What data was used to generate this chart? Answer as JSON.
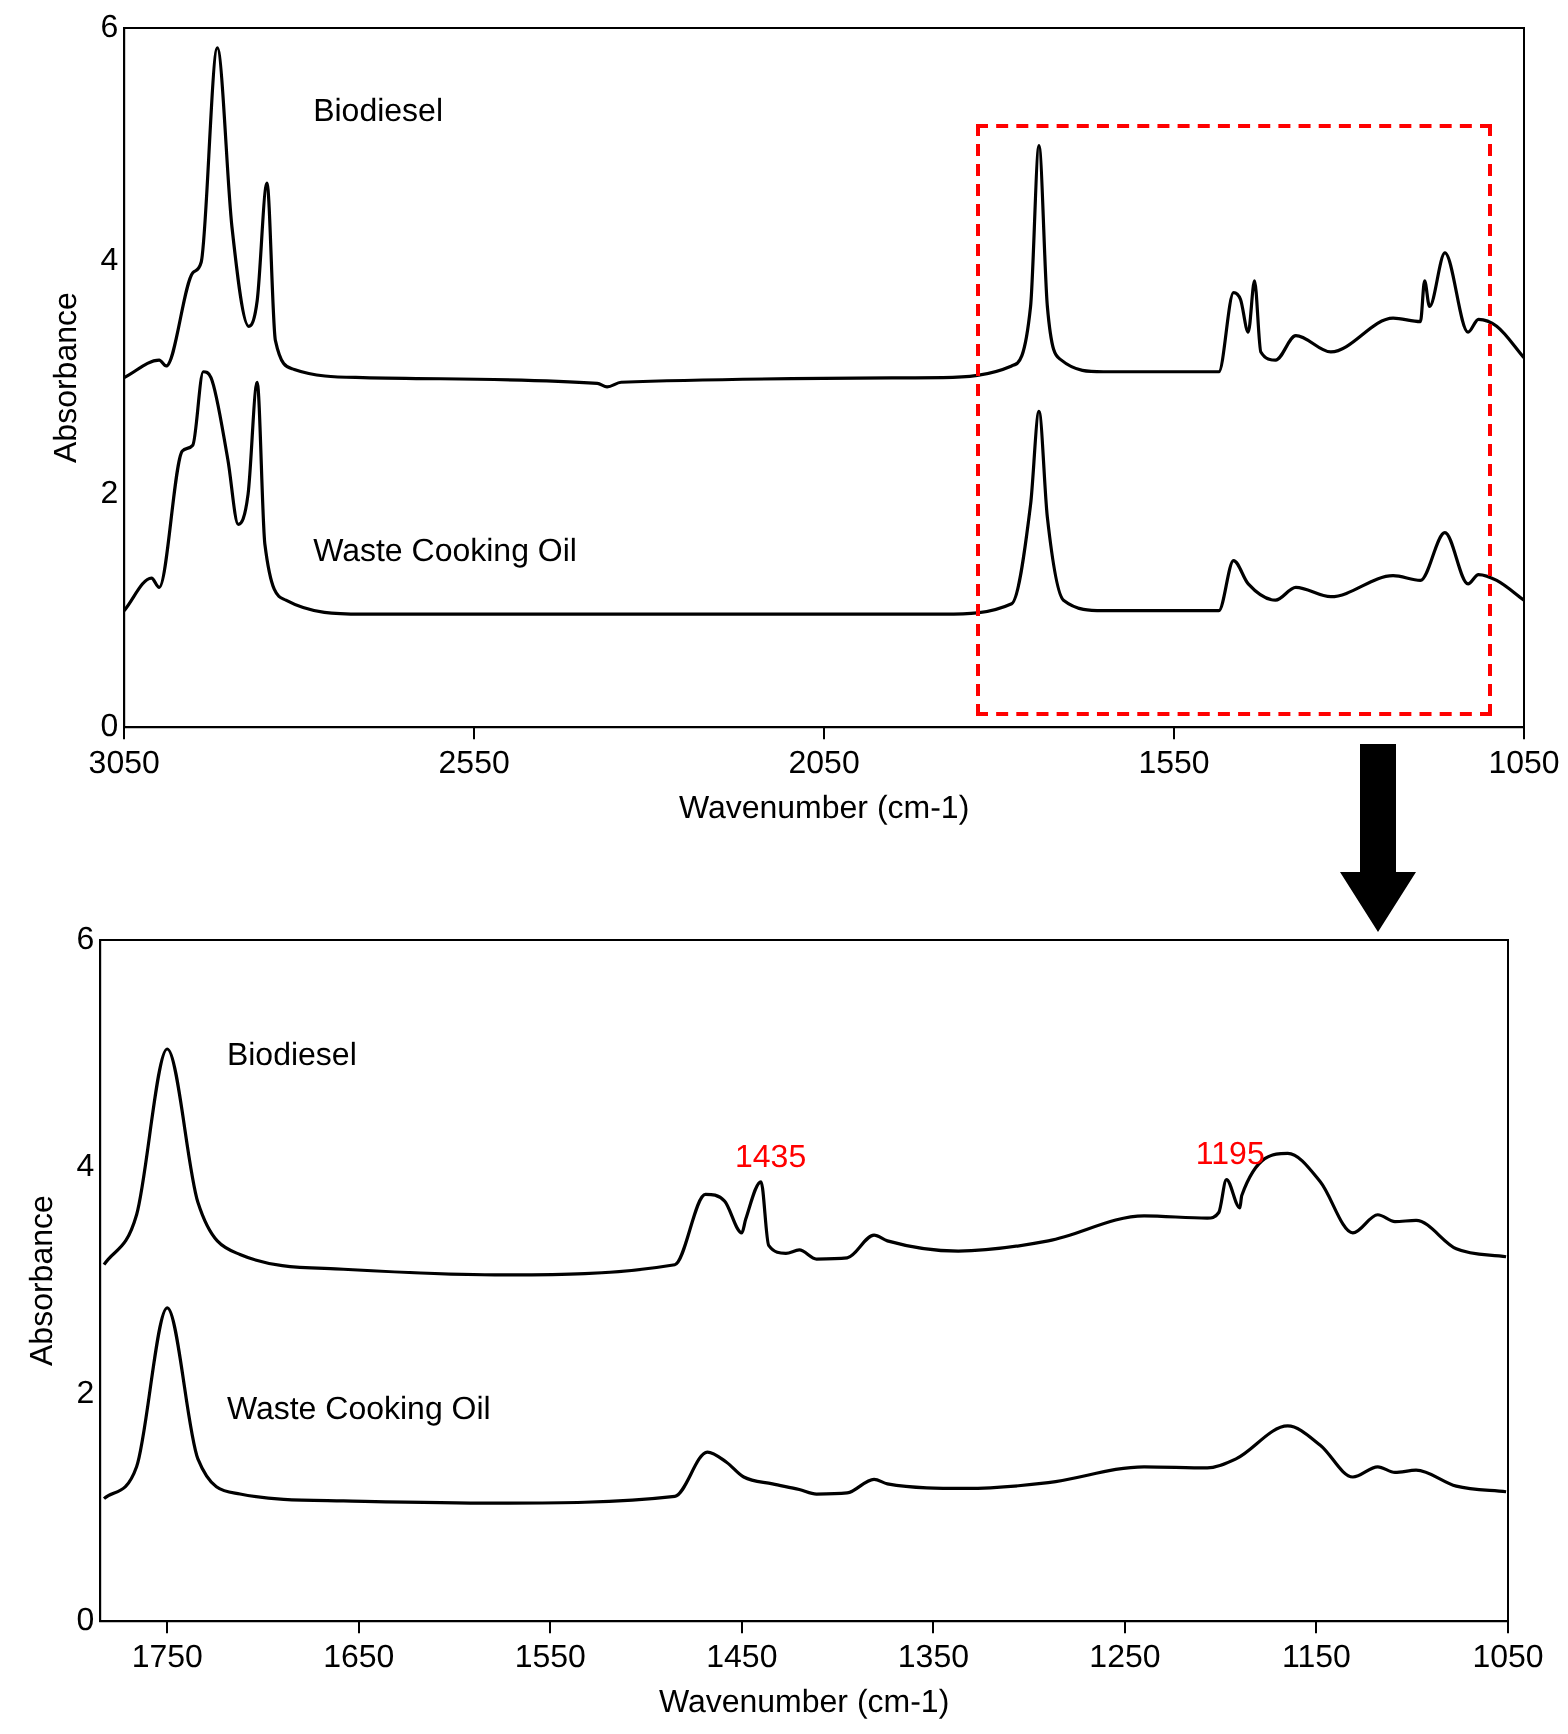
{
  "chart_data": [
    {
      "type": "line",
      "xlabel": "Wavenumber (cm-1)",
      "ylabel": "Absorbance",
      "xlim": [
        3050,
        1050
      ],
      "xticks": [
        3050,
        2550,
        2050,
        1550,
        1050
      ],
      "ylim": [
        0,
        6
      ],
      "yticks": [
        0,
        2,
        4,
        6
      ],
      "legend": false,
      "grid": false,
      "series": [
        {
          "name": "Biodiesel",
          "color": "#000000",
          "x": [
            3050,
            3000,
            2990,
            2952,
            2940,
            2917,
            2896,
            2872,
            2860,
            2846,
            2834,
            2807,
            2709,
            2374,
            2360,
            2340,
            1880,
            1782,
            1755,
            1743,
            1731,
            1711,
            1651,
            1486,
            1465,
            1455,
            1444,
            1435,
            1426,
            1405,
            1376,
            1326,
            1237,
            1198,
            1192,
            1185,
            1163,
            1130,
            1115,
            1089,
            1050
          ],
          "values": [
            3.0,
            3.15,
            3.1,
            3.9,
            3.99,
            5.83,
            4.29,
            3.44,
            3.66,
            4.67,
            3.32,
            3.07,
            3.0,
            2.95,
            2.92,
            2.96,
            3.0,
            3.1,
            3.61,
            4.99,
            3.61,
            3.15,
            3.05,
            3.05,
            3.73,
            3.67,
            3.39,
            3.83,
            3.22,
            3.15,
            3.36,
            3.22,
            3.51,
            3.48,
            3.83,
            3.61,
            4.07,
            3.39,
            3.5,
            3.44,
            3.17
          ]
        },
        {
          "name": "Waste Cooking Oil",
          "color": "#000000",
          "x": [
            3050,
            3011,
            3000,
            2967,
            2952,
            2937,
            2926,
            2902,
            2887,
            2873,
            2860,
            2849,
            2819,
            2709,
            1880,
            1782,
            1755,
            1743,
            1731,
            1708,
            1651,
            1486,
            1465,
            1444,
            1405,
            1376,
            1326,
            1237,
            1198,
            1163,
            1130,
            1115,
            1089,
            1050
          ],
          "values": [
            1.0,
            1.28,
            1.2,
            2.37,
            2.42,
            3.05,
            3.0,
            2.3,
            1.74,
            2.0,
            2.96,
            1.57,
            1.09,
            0.97,
            0.97,
            1.06,
            1.91,
            2.71,
            1.8,
            1.09,
            1.0,
            1.0,
            1.43,
            1.23,
            1.09,
            1.2,
            1.12,
            1.3,
            1.26,
            1.67,
            1.23,
            1.31,
            1.26,
            1.09
          ]
        }
      ]
    },
    {
      "type": "line",
      "xlabel": "Wavenumber (cm-1)",
      "ylabel": "Absorbance",
      "xlim": [
        1785,
        1050
      ],
      "xticks": [
        1750,
        1650,
        1550,
        1450,
        1350,
        1250,
        1150,
        1050
      ],
      "ylim": [
        0,
        6
      ],
      "yticks": [
        0,
        2,
        4,
        6
      ],
      "legend": false,
      "grid": false,
      "annotations": [
        {
          "text": "1435",
          "x": 1435,
          "y": 3.87
        },
        {
          "text": "1195",
          "x": 1195,
          "y": 3.89
        }
      ],
      "series": [
        {
          "name": "Biodiesel",
          "color": "#000000",
          "x": [
            1783,
            1766,
            1750,
            1734,
            1712,
            1658,
            1579,
            1485,
            1469,
            1459,
            1450,
            1448,
            1440,
            1436,
            1427,
            1420,
            1411,
            1395,
            1381,
            1374,
            1337,
            1290,
            1240,
            1207,
            1201,
            1197,
            1190,
            1189,
            1165,
            1148,
            1131,
            1118,
            1109,
            1098,
            1077,
            1051
          ],
          "values": [
            3.14,
            3.58,
            5.04,
            3.69,
            3.23,
            3.1,
            3.05,
            3.14,
            3.76,
            3.7,
            3.42,
            3.54,
            3.87,
            3.31,
            3.24,
            3.27,
            3.19,
            3.2,
            3.4,
            3.35,
            3.26,
            3.35,
            3.57,
            3.55,
            3.6,
            3.89,
            3.64,
            3.75,
            4.12,
            3.87,
            3.42,
            3.58,
            3.52,
            3.53,
            3.28,
            3.21
          ]
        },
        {
          "name": "Waste Cooking Oil",
          "color": "#000000",
          "x": [
            1783,
            1766,
            1750,
            1734,
            1712,
            1658,
            1579,
            1485,
            1468,
            1458,
            1449,
            1434,
            1420,
            1411,
            1395,
            1381,
            1374,
            1333,
            1290,
            1240,
            1207,
            1192,
            1165,
            1148,
            1131,
            1118,
            1109,
            1098,
            1077,
            1051
          ],
          "values": [
            1.08,
            1.36,
            2.76,
            1.43,
            1.12,
            1.06,
            1.04,
            1.1,
            1.49,
            1.4,
            1.27,
            1.21,
            1.16,
            1.12,
            1.13,
            1.25,
            1.21,
            1.17,
            1.22,
            1.36,
            1.35,
            1.43,
            1.72,
            1.55,
            1.27,
            1.36,
            1.31,
            1.33,
            1.19,
            1.14
          ]
        }
      ]
    }
  ]
}
